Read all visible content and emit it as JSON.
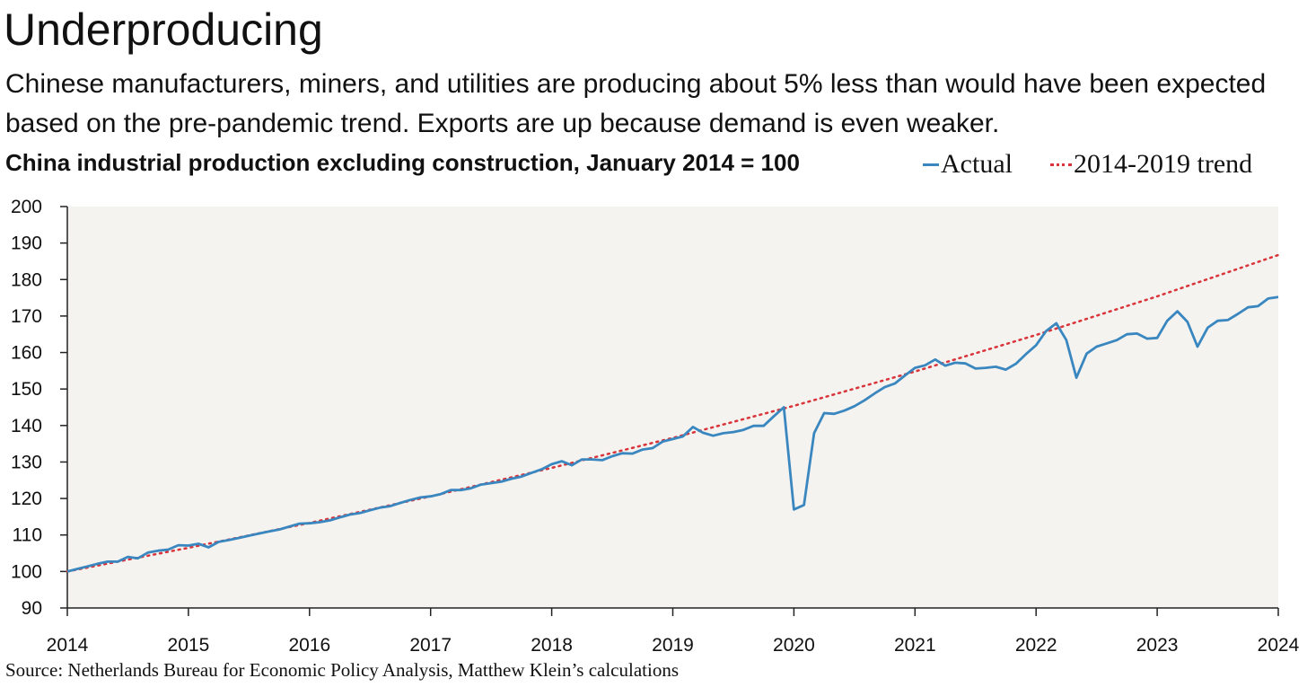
{
  "title": "Underproducing",
  "subtitle": "Chinese manufacturers, miners, and utilities are producing about 5% less than would have been expected based on the pre-pandemic trend. Exports are up because demand is even weaker.",
  "source": "Source: Netherlands Bureau for Economic Policy Analysis, Matthew Klein’s calculations",
  "colors": {
    "actual": "#3a87c0",
    "trend": "#d9343a",
    "plot_bg": "#f4f3f0"
  },
  "chart_data": {
    "type": "line",
    "title": "China industrial production excluding construction, January 2014 = 100",
    "xlabel": "",
    "ylabel": "",
    "xlim": [
      2014,
      2024
    ],
    "ylim": [
      90,
      200
    ],
    "yticks": [
      90,
      100,
      110,
      120,
      130,
      140,
      150,
      160,
      170,
      180,
      190,
      200
    ],
    "xticks": [
      "2014",
      "2015",
      "2016",
      "2017",
      "2018",
      "2019",
      "2020",
      "2021",
      "2022",
      "2023",
      "2024"
    ],
    "grid": false,
    "legend_position": "top-right",
    "series": [
      {
        "name": "Actual",
        "style": "solid",
        "x": [
          2014.0,
          2014.083,
          2014.167,
          2014.25,
          2014.333,
          2014.417,
          2014.5,
          2014.583,
          2014.667,
          2014.75,
          2014.833,
          2014.917,
          2015.0,
          2015.083,
          2015.167,
          2015.25,
          2015.333,
          2015.417,
          2015.5,
          2015.583,
          2015.667,
          2015.75,
          2015.833,
          2015.917,
          2016.0,
          2016.083,
          2016.167,
          2016.25,
          2016.333,
          2016.417,
          2016.5,
          2016.583,
          2016.667,
          2016.75,
          2016.833,
          2016.917,
          2017.0,
          2017.083,
          2017.167,
          2017.25,
          2017.333,
          2017.417,
          2017.5,
          2017.583,
          2017.667,
          2017.75,
          2017.833,
          2017.917,
          2018.0,
          2018.083,
          2018.167,
          2018.25,
          2018.333,
          2018.417,
          2018.5,
          2018.583,
          2018.667,
          2018.75,
          2018.833,
          2018.917,
          2019.0,
          2019.083,
          2019.167,
          2019.25,
          2019.333,
          2019.417,
          2019.5,
          2019.583,
          2019.667,
          2019.75,
          2019.833,
          2019.917,
          2020.0,
          2020.083,
          2020.167,
          2020.25,
          2020.333,
          2020.417,
          2020.5,
          2020.583,
          2020.667,
          2020.75,
          2020.833,
          2020.917,
          2021.0,
          2021.083,
          2021.167,
          2021.25,
          2021.333,
          2021.417,
          2021.5,
          2021.583,
          2021.667,
          2021.75,
          2021.833,
          2021.917,
          2022.0,
          2022.083,
          2022.167,
          2022.25,
          2022.333,
          2022.417,
          2022.5,
          2022.583,
          2022.667,
          2022.75,
          2022.833,
          2022.917,
          2023.0,
          2023.083,
          2023.167,
          2023.25,
          2023.333,
          2023.417,
          2023.5,
          2023.583,
          2023.667,
          2023.75,
          2023.833,
          2023.917,
          2024.0
        ],
        "values": [
          100.0,
          100.7,
          101.4,
          102.1,
          102.7,
          102.7,
          104.0,
          103.6,
          105.2,
          105.7,
          106.0,
          107.2,
          107.1,
          107.6,
          106.6,
          108.1,
          108.6,
          109.2,
          109.8,
          110.4,
          111.0,
          111.5,
          112.3,
          113.1,
          113.2,
          113.5,
          114.0,
          114.8,
          115.6,
          116.0,
          116.8,
          117.5,
          117.9,
          118.8,
          119.6,
          120.3,
          120.6,
          121.2,
          122.3,
          122.3,
          122.8,
          123.8,
          124.2,
          124.6,
          125.4,
          126.0,
          127.0,
          128.0,
          129.4,
          130.2,
          129.1,
          130.7,
          130.7,
          130.5,
          131.6,
          132.4,
          132.3,
          133.4,
          133.8,
          135.6,
          136.3,
          137.0,
          139.6,
          138.0,
          137.2,
          137.9,
          138.2,
          138.8,
          139.9,
          139.9,
          142.5,
          145.0,
          117.0,
          118.2,
          137.9,
          143.4,
          143.2,
          144.1,
          145.3,
          146.9,
          148.8,
          150.5,
          151.5,
          153.7,
          155.8,
          156.5,
          158.1,
          156.4,
          157.2,
          157.0,
          155.6,
          155.8,
          156.1,
          155.3,
          156.9,
          159.6,
          162.0,
          165.9,
          168.0,
          163.4,
          153.1,
          159.7,
          161.6,
          162.5,
          163.4,
          165.0,
          165.2,
          163.8,
          164.0,
          168.7,
          171.3,
          168.4,
          161.6,
          166.8,
          168.7,
          168.9,
          170.6,
          172.4,
          172.7,
          174.8,
          175.2
        ]
      },
      {
        "name": "2014-2019 trend",
        "style": "dotted",
        "x": [
          2014.0,
          2015.0,
          2016.0,
          2017.0,
          2018.0,
          2019.0,
          2020.0,
          2021.0,
          2022.0,
          2023.0,
          2024.0
        ],
        "values": [
          100.0,
          106.5,
          113.3,
          120.6,
          128.4,
          136.6,
          145.4,
          154.8,
          164.8,
          175.4,
          186.7
        ]
      }
    ]
  }
}
